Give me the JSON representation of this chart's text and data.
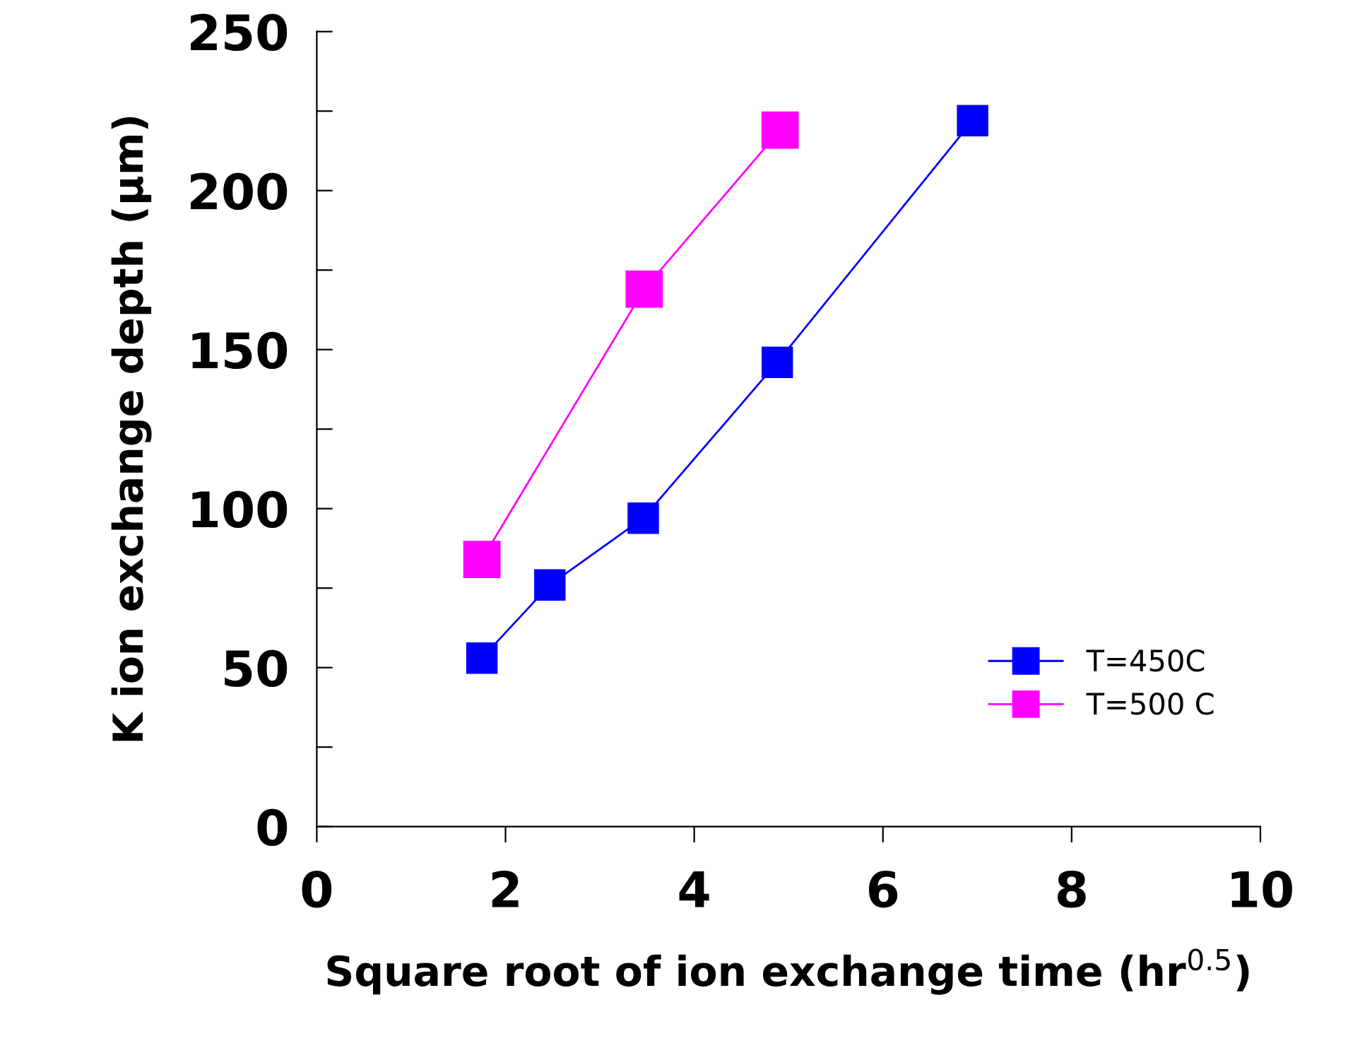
{
  "chart_data": {
    "type": "line",
    "xlabel": "Square root of ion exchange time (hr$^{0.5}$)",
    "ylabel": "K ion exchange depth (µm)",
    "xlim": [
      0,
      10
    ],
    "ylim": [
      0,
      250
    ],
    "xticks": [
      0,
      2,
      4,
      6,
      8,
      10
    ],
    "yticks": [
      0,
      {
        "value": 25,
        "label": null
      },
      50,
      {
        "value": 75,
        "label": null
      },
      100,
      {
        "value": 125,
        "label": null
      },
      150,
      {
        "value": 175,
        "label": null
      },
      200,
      {
        "value": 225,
        "label": null
      },
      250
    ],
    "marker": "square",
    "legend": "bottom right",
    "grid": false,
    "series": [
      {
        "name": "T=450C",
        "color": "#0000ff",
        "x": [
          1.75,
          2.47,
          3.46,
          4.88,
          6.95
        ],
        "values": [
          53,
          76,
          97,
          146,
          222
        ]
      },
      {
        "name": "T=500 C",
        "color": "#ff00ff",
        "x": [
          1.75,
          3.47,
          4.91
        ],
        "values": [
          84,
          169,
          219
        ]
      }
    ]
  }
}
